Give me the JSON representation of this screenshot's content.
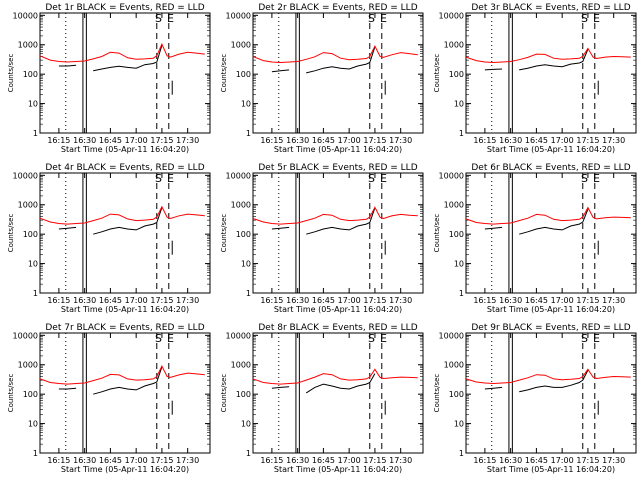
{
  "figure": {
    "x_tick_labels": [
      "16:15",
      "16:30",
      "16:45",
      "17:00",
      "17:15",
      "17:30"
    ],
    "y_tick_labels": [
      "1",
      "10",
      "100",
      "1000",
      "10000"
    ],
    "ylabel": "Counts/sec",
    "xlabel": "Start Time (05-Apr-11 16:04:20)",
    "flags": [
      "S",
      "E"
    ],
    "colors": {
      "events": "#000000",
      "lld": "#ff0000",
      "axes": "#000000",
      "background": "#ffffff"
    }
  },
  "chart_data": [
    {
      "type": "line",
      "title": "Det 1r  BLACK = Events, RED = LLD",
      "xlabel": "Start Time (05-Apr-11 16:04:20)",
      "ylabel": "Counts/sec",
      "log_y": true,
      "ylim": [
        1,
        10000
      ],
      "x_ticks": [
        "16:15",
        "16:30",
        "16:45",
        "17:00",
        "17:15",
        "17:30"
      ],
      "x": [
        "16:04",
        "16:10",
        "16:15",
        "16:20",
        "16:25",
        "16:30",
        "16:35",
        "16:40",
        "16:45",
        "16:50",
        "16:55",
        "17:00",
        "17:05",
        "17:10",
        "17:12",
        "17:15",
        "17:18",
        "17:20",
        "17:25",
        "17:30",
        "17:35",
        "17:40"
      ],
      "series": [
        {
          "name": "BLACK = Events",
          "values": [
            null,
            null,
            190,
            190,
            200,
            null,
            130,
            150,
            170,
            185,
            170,
            160,
            210,
            230,
            260,
            950,
            null,
            null,
            null,
            null,
            null,
            null
          ]
        },
        {
          "name": "RED = LLD",
          "values": [
            420,
            300,
            270,
            260,
            270,
            280,
            330,
            400,
            560,
            520,
            360,
            320,
            330,
            350,
            420,
            1050,
            420,
            380,
            480,
            560,
            520,
            480
          ]
        }
      ]
    },
    {
      "type": "line",
      "title": "Det 2r  BLACK = Events, RED = LLD",
      "xlabel": "Start Time (05-Apr-11 16:04:20)",
      "ylabel": "Counts/sec",
      "log_y": true,
      "ylim": [
        1,
        10000
      ],
      "x_ticks": [
        "16:15",
        "16:30",
        "16:45",
        "17:00",
        "17:15",
        "17:30"
      ],
      "x": [
        "16:04",
        "16:10",
        "16:15",
        "16:20",
        "16:25",
        "16:30",
        "16:35",
        "16:40",
        "16:45",
        "16:50",
        "16:55",
        "17:00",
        "17:05",
        "17:10",
        "17:12",
        "17:15",
        "17:18",
        "17:20",
        "17:25",
        "17:30",
        "17:35",
        "17:40"
      ],
      "series": [
        {
          "name": "BLACK = Events",
          "values": [
            null,
            null,
            120,
            130,
            140,
            null,
            110,
            130,
            160,
            180,
            160,
            150,
            190,
            220,
            250,
            850,
            null,
            null,
            null,
            null,
            null,
            null
          ]
        },
        {
          "name": "RED = LLD",
          "values": [
            400,
            290,
            260,
            250,
            260,
            270,
            320,
            390,
            540,
            500,
            350,
            310,
            320,
            340,
            400,
            900,
            400,
            370,
            460,
            540,
            500,
            460
          ]
        }
      ]
    },
    {
      "type": "line",
      "title": "Det 3r  BLACK = Events, RED = LLD",
      "xlabel": "Start Time (05-Apr-11 16:04:20)",
      "ylabel": "Counts/sec",
      "log_y": true,
      "ylim": [
        1,
        10000
      ],
      "x_ticks": [
        "16:15",
        "16:30",
        "16:45",
        "17:00",
        "17:15",
        "17:30"
      ],
      "x": [
        "16:04",
        "16:10",
        "16:15",
        "16:20",
        "16:25",
        "16:30",
        "16:35",
        "16:40",
        "16:45",
        "16:50",
        "16:55",
        "17:00",
        "17:05",
        "17:10",
        "17:12",
        "17:15",
        "17:18",
        "17:20",
        "17:25",
        "17:30",
        "17:35",
        "17:40"
      ],
      "series": [
        {
          "name": "BLACK = Events",
          "values": [
            null,
            null,
            140,
            145,
            150,
            null,
            140,
            160,
            190,
            210,
            190,
            180,
            220,
            240,
            270,
            700,
            null,
            null,
            null,
            null,
            null,
            null
          ]
        },
        {
          "name": "RED = LLD",
          "values": [
            380,
            290,
            260,
            250,
            260,
            270,
            310,
            370,
            480,
            470,
            350,
            320,
            330,
            350,
            400,
            750,
            380,
            340,
            380,
            400,
            390,
            380
          ]
        }
      ]
    },
    {
      "type": "line",
      "title": "Det 4r  BLACK = Events, RED = LLD",
      "xlabel": "Start Time (05-Apr-11 16:04:20)",
      "ylabel": "Counts/sec",
      "log_y": true,
      "ylim": [
        1,
        10000
      ],
      "x_ticks": [
        "16:15",
        "16:30",
        "16:45",
        "17:00",
        "17:15",
        "17:30"
      ],
      "x": [
        "16:04",
        "16:10",
        "16:15",
        "16:20",
        "16:25",
        "16:30",
        "16:35",
        "16:40",
        "16:45",
        "16:50",
        "16:55",
        "17:00",
        "17:05",
        "17:10",
        "17:12",
        "17:15",
        "17:18",
        "17:20",
        "17:25",
        "17:30",
        "17:35",
        "17:40"
      ],
      "series": [
        {
          "name": "BLACK = Events",
          "values": [
            null,
            null,
            150,
            160,
            170,
            null,
            100,
            120,
            150,
            170,
            150,
            140,
            190,
            220,
            250,
            800,
            null,
            null,
            null,
            null,
            null,
            null
          ]
        },
        {
          "name": "RED = LLD",
          "values": [
            350,
            260,
            230,
            220,
            230,
            240,
            290,
            350,
            480,
            450,
            330,
            290,
            300,
            320,
            380,
            850,
            380,
            340,
            420,
            480,
            450,
            420
          ]
        }
      ]
    },
    {
      "type": "line",
      "title": "Det 5r  BLACK = Events, RED = LLD",
      "xlabel": "Start Time (05-Apr-11 16:04:20)",
      "ylabel": "Counts/sec",
      "log_y": true,
      "ylim": [
        1,
        10000
      ],
      "x_ticks": [
        "16:15",
        "16:30",
        "16:45",
        "17:00",
        "17:15",
        "17:30"
      ],
      "x": [
        "16:04",
        "16:10",
        "16:15",
        "16:20",
        "16:25",
        "16:30",
        "16:35",
        "16:40",
        "16:45",
        "16:50",
        "16:55",
        "17:00",
        "17:05",
        "17:10",
        "17:12",
        "17:15",
        "17:18",
        "17:20",
        "17:25",
        "17:30",
        "17:35",
        "17:40"
      ],
      "series": [
        {
          "name": "BLACK = Events",
          "values": [
            null,
            null,
            150,
            160,
            170,
            null,
            100,
            120,
            150,
            170,
            150,
            140,
            190,
            220,
            250,
            780,
            null,
            null,
            null,
            null,
            null,
            null
          ]
        },
        {
          "name": "RED = LLD",
          "values": [
            340,
            260,
            230,
            220,
            230,
            240,
            290,
            350,
            470,
            440,
            320,
            290,
            300,
            320,
            380,
            820,
            370,
            340,
            420,
            470,
            440,
            420
          ]
        }
      ]
    },
    {
      "type": "line",
      "title": "Det 6r  BLACK = Events, RED = LLD",
      "xlabel": "Start Time (05-Apr-11 16:04:20)",
      "ylabel": "Counts/sec",
      "log_y": true,
      "ylim": [
        1,
        10000
      ],
      "x_ticks": [
        "16:15",
        "16:30",
        "16:45",
        "17:00",
        "17:15",
        "17:30"
      ],
      "x": [
        "16:04",
        "16:10",
        "16:15",
        "16:20",
        "16:25",
        "16:30",
        "16:35",
        "16:40",
        "16:45",
        "16:50",
        "16:55",
        "17:00",
        "17:05",
        "17:10",
        "17:12",
        "17:15",
        "17:18",
        "17:20",
        "17:25",
        "17:30",
        "17:35",
        "17:40"
      ],
      "series": [
        {
          "name": "BLACK = Events",
          "values": [
            null,
            null,
            150,
            160,
            170,
            null,
            100,
            120,
            150,
            170,
            150,
            140,
            190,
            220,
            260,
            700,
            null,
            null,
            null,
            null,
            null,
            null
          ]
        },
        {
          "name": "RED = LLD",
          "values": [
            330,
            250,
            230,
            220,
            230,
            240,
            290,
            350,
            470,
            440,
            320,
            290,
            300,
            320,
            380,
            800,
            370,
            330,
            360,
            380,
            370,
            360
          ]
        }
      ]
    },
    {
      "type": "line",
      "title": "Det 7r  BLACK = Events, RED = LLD",
      "xlabel": "Start Time (05-Apr-11 16:04:20)",
      "ylabel": "Counts/sec",
      "log_y": true,
      "ylim": [
        1,
        10000
      ],
      "x_ticks": [
        "16:15",
        "16:30",
        "16:45",
        "17:00",
        "17:15",
        "17:30"
      ],
      "x": [
        "16:04",
        "16:10",
        "16:15",
        "16:20",
        "16:25",
        "16:30",
        "16:35",
        "16:40",
        "16:45",
        "16:50",
        "16:55",
        "17:00",
        "17:05",
        "17:10",
        "17:12",
        "17:15",
        "17:18",
        "17:20",
        "17:25",
        "17:30",
        "17:35",
        "17:40"
      ],
      "series": [
        {
          "name": "BLACK = Events",
          "values": [
            null,
            null,
            150,
            150,
            160,
            null,
            100,
            120,
            150,
            170,
            150,
            140,
            190,
            230,
            260,
            850,
            null,
            null,
            null,
            null,
            null,
            null
          ]
        },
        {
          "name": "RED = LLD",
          "values": [
            330,
            250,
            230,
            220,
            230,
            240,
            290,
            350,
            470,
            450,
            330,
            300,
            310,
            330,
            400,
            900,
            400,
            370,
            450,
            520,
            490,
            460
          ]
        }
      ]
    },
    {
      "type": "line",
      "title": "Det 8r  BLACK = Events, RED = LLD",
      "xlabel": "Start Time (05-Apr-11 16:04:20)",
      "ylabel": "Counts/sec",
      "log_y": true,
      "ylim": [
        1,
        10000
      ],
      "x_ticks": [
        "16:15",
        "16:30",
        "16:45",
        "17:00",
        "17:15",
        "17:30"
      ],
      "x": [
        "16:04",
        "16:10",
        "16:15",
        "16:20",
        "16:25",
        "16:30",
        "16:35",
        "16:40",
        "16:45",
        "16:50",
        "16:55",
        "17:00",
        "17:05",
        "17:10",
        "17:12",
        "17:15",
        "17:18",
        "17:20",
        "17:25",
        "17:30",
        "17:35",
        "17:40"
      ],
      "series": [
        {
          "name": "BLACK = Events",
          "values": [
            null,
            null,
            160,
            170,
            180,
            null,
            110,
            170,
            220,
            190,
            160,
            150,
            190,
            220,
            250,
            500,
            null,
            null,
            null,
            null,
            null,
            null
          ]
        },
        {
          "name": "RED = LLD",
          "values": [
            330,
            250,
            230,
            220,
            230,
            240,
            300,
            380,
            500,
            460,
            330,
            300,
            310,
            330,
            380,
            700,
            370,
            340,
            360,
            380,
            370,
            360
          ]
        }
      ]
    },
    {
      "type": "line",
      "title": "Det 9r  BLACK = Events, RED = LLD",
      "xlabel": "Start Time (05-Apr-11 16:04:20)",
      "ylabel": "Counts/sec",
      "log_y": true,
      "ylim": [
        1,
        10000
      ],
      "x_ticks": [
        "16:15",
        "16:30",
        "16:45",
        "17:00",
        "17:15",
        "17:30"
      ],
      "x": [
        "16:04",
        "16:10",
        "16:15",
        "16:20",
        "16:25",
        "16:30",
        "16:35",
        "16:40",
        "16:45",
        "16:50",
        "16:55",
        "17:00",
        "17:05",
        "17:10",
        "17:12",
        "17:15",
        "17:18",
        "17:20",
        "17:25",
        "17:30",
        "17:35",
        "17:40"
      ],
      "series": [
        {
          "name": "BLACK = Events",
          "values": [
            null,
            null,
            150,
            160,
            170,
            null,
            120,
            140,
            170,
            190,
            170,
            170,
            200,
            250,
            300,
            650,
            null,
            null,
            null,
            null,
            null,
            null
          ]
        },
        {
          "name": "RED = LLD",
          "values": [
            330,
            260,
            240,
            230,
            240,
            250,
            300,
            360,
            460,
            440,
            330,
            310,
            320,
            340,
            400,
            700,
            380,
            340,
            370,
            400,
            390,
            380
          ]
        }
      ]
    }
  ]
}
